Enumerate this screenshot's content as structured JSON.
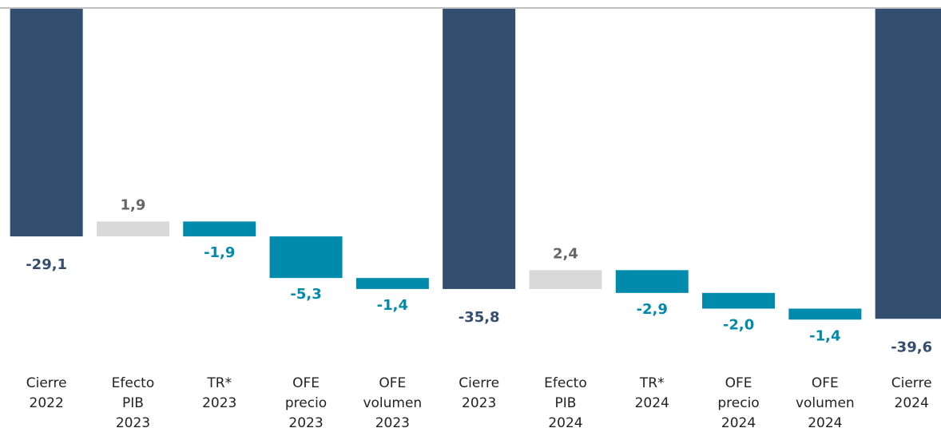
{
  "chart_data": {
    "type": "waterfall",
    "categories": [
      [
        "Cierre",
        "2022"
      ],
      [
        "Efecto",
        "PIB",
        "2023"
      ],
      [
        "TR*",
        "2023"
      ],
      [
        "OFE",
        "precio",
        "2023"
      ],
      [
        "OFE",
        "volumen",
        "2023"
      ],
      [
        "Cierre",
        "2023"
      ],
      [
        "Efecto",
        "PIB",
        "2024"
      ],
      [
        "TR*",
        "2024"
      ],
      [
        "OFE",
        "precio",
        "2024"
      ],
      [
        "OFE",
        "volumen",
        "2024"
      ],
      [
        "Cierre",
        "2024"
      ]
    ],
    "measures": [
      "total",
      "relative",
      "relative",
      "relative",
      "relative",
      "total",
      "relative",
      "relative",
      "relative",
      "relative",
      "total"
    ],
    "values": [
      -29.1,
      1.9,
      -1.9,
      -5.3,
      -1.4,
      -35.8,
      2.4,
      -2.9,
      -2.0,
      -1.4,
      -39.6
    ],
    "value_labels": [
      "-29,1",
      "1,9",
      "-1,9",
      "-5,3",
      "-1,4",
      "-35,8",
      "2,4",
      "-2,9",
      "-2,0",
      "-1,4",
      "-39,6"
    ],
    "colors": {
      "total": "#334e6e",
      "increase": "#d9d9d9",
      "decrease": "#008aab"
    },
    "label_colors": {
      "total": "#334e6e",
      "increase": "#666666",
      "decrease": "#008aab"
    },
    "ylim": [
      -42,
      0
    ]
  }
}
